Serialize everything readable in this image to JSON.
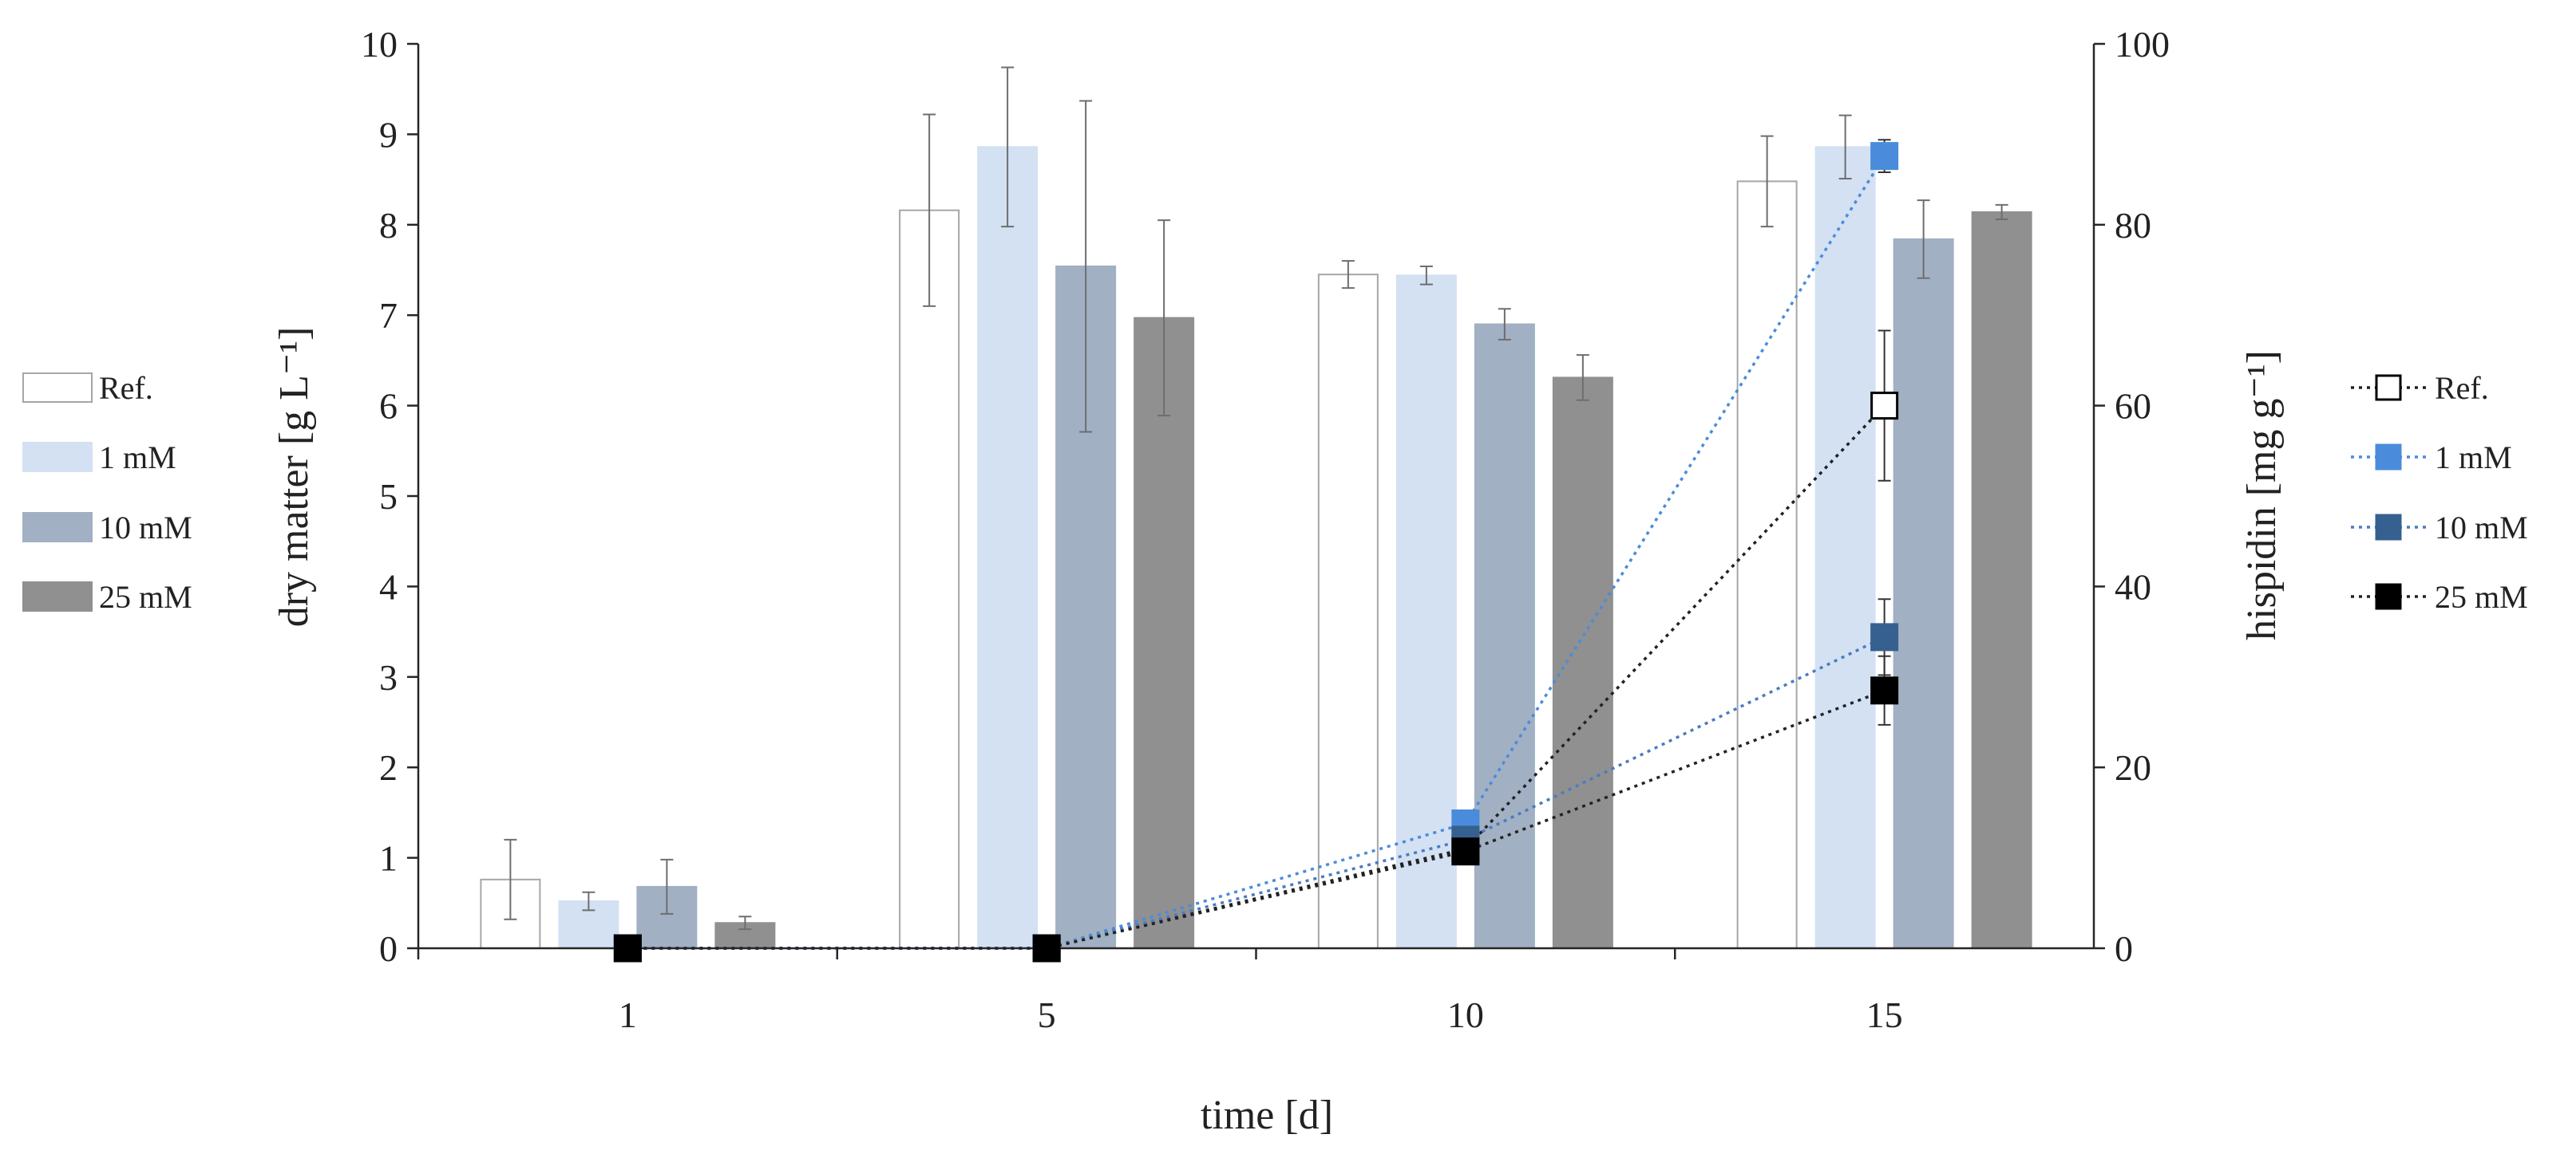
{
  "chart_data": {
    "type": "bar+line",
    "categories": [
      "1",
      "5",
      "10",
      "15"
    ],
    "xlabel": "time [d]",
    "ylabel_left": "dry matter [g L⁻¹]",
    "ylabel_right": "hispidin [mg g⁻¹]",
    "ylim_left": [
      0,
      10
    ],
    "ylim_right": [
      0,
      100
    ],
    "yticks_left": [
      "0",
      "1",
      "2",
      "3",
      "4",
      "5",
      "6",
      "7",
      "8",
      "9",
      "10"
    ],
    "yticks_right": [
      "0",
      "20",
      "40",
      "60",
      "80",
      "100"
    ],
    "grid": false,
    "bar_series": [
      {
        "name": "Ref.",
        "color": "#ffffff",
        "stroke": "#a6a6a6",
        "values": [
          0.76,
          8.16,
          7.45,
          8.48
        ],
        "errors": [
          0.44,
          1.06,
          0.15,
          0.5
        ]
      },
      {
        "name": "1 mM",
        "color": "#d3e1f3",
        "stroke": "#d3e1f3",
        "values": [
          0.52,
          8.86,
          7.44,
          8.86
        ],
        "errors": [
          0.1,
          0.88,
          0.1,
          0.35
        ]
      },
      {
        "name": "10 mM",
        "color": "#a1b0c3",
        "stroke": "#a1b0c3",
        "values": [
          0.68,
          7.54,
          6.9,
          7.84
        ],
        "errors": [
          0.3,
          1.83,
          0.17,
          0.43
        ]
      },
      {
        "name": "25 mM",
        "color": "#909090",
        "stroke": "#909090",
        "values": [
          0.28,
          6.97,
          6.31,
          8.14
        ],
        "errors": [
          0.07,
          1.08,
          0.25,
          0.08
        ]
      }
    ],
    "line_series": [
      {
        "name": "Ref.",
        "color": "#ffffff",
        "stroke": "#000000",
        "line": "#222222",
        "values": [
          0,
          0,
          11,
          60
        ],
        "errors": [
          0,
          0,
          0,
          8.3
        ]
      },
      {
        "name": "1 mM",
        "color": "#4a8cdb",
        "stroke": "#4a8cdb",
        "line": "#4a8cdb",
        "values": [
          0,
          0,
          13.8,
          87.6
        ],
        "errors": [
          0,
          0,
          0,
          1.8
        ]
      },
      {
        "name": "10 mM",
        "color": "#36608f",
        "stroke": "#36608f",
        "line": "#4a7cc0",
        "values": [
          0,
          0,
          12,
          34.4
        ],
        "errors": [
          0,
          0,
          0,
          4.2
        ]
      },
      {
        "name": "25 mM",
        "color": "#000000",
        "stroke": "#000000",
        "line": "#222222",
        "values": [
          0,
          0,
          10.7,
          28.5
        ],
        "errors": [
          0,
          0,
          0,
          3.8
        ]
      }
    ],
    "legend_left": "left",
    "legend_right": "right"
  }
}
